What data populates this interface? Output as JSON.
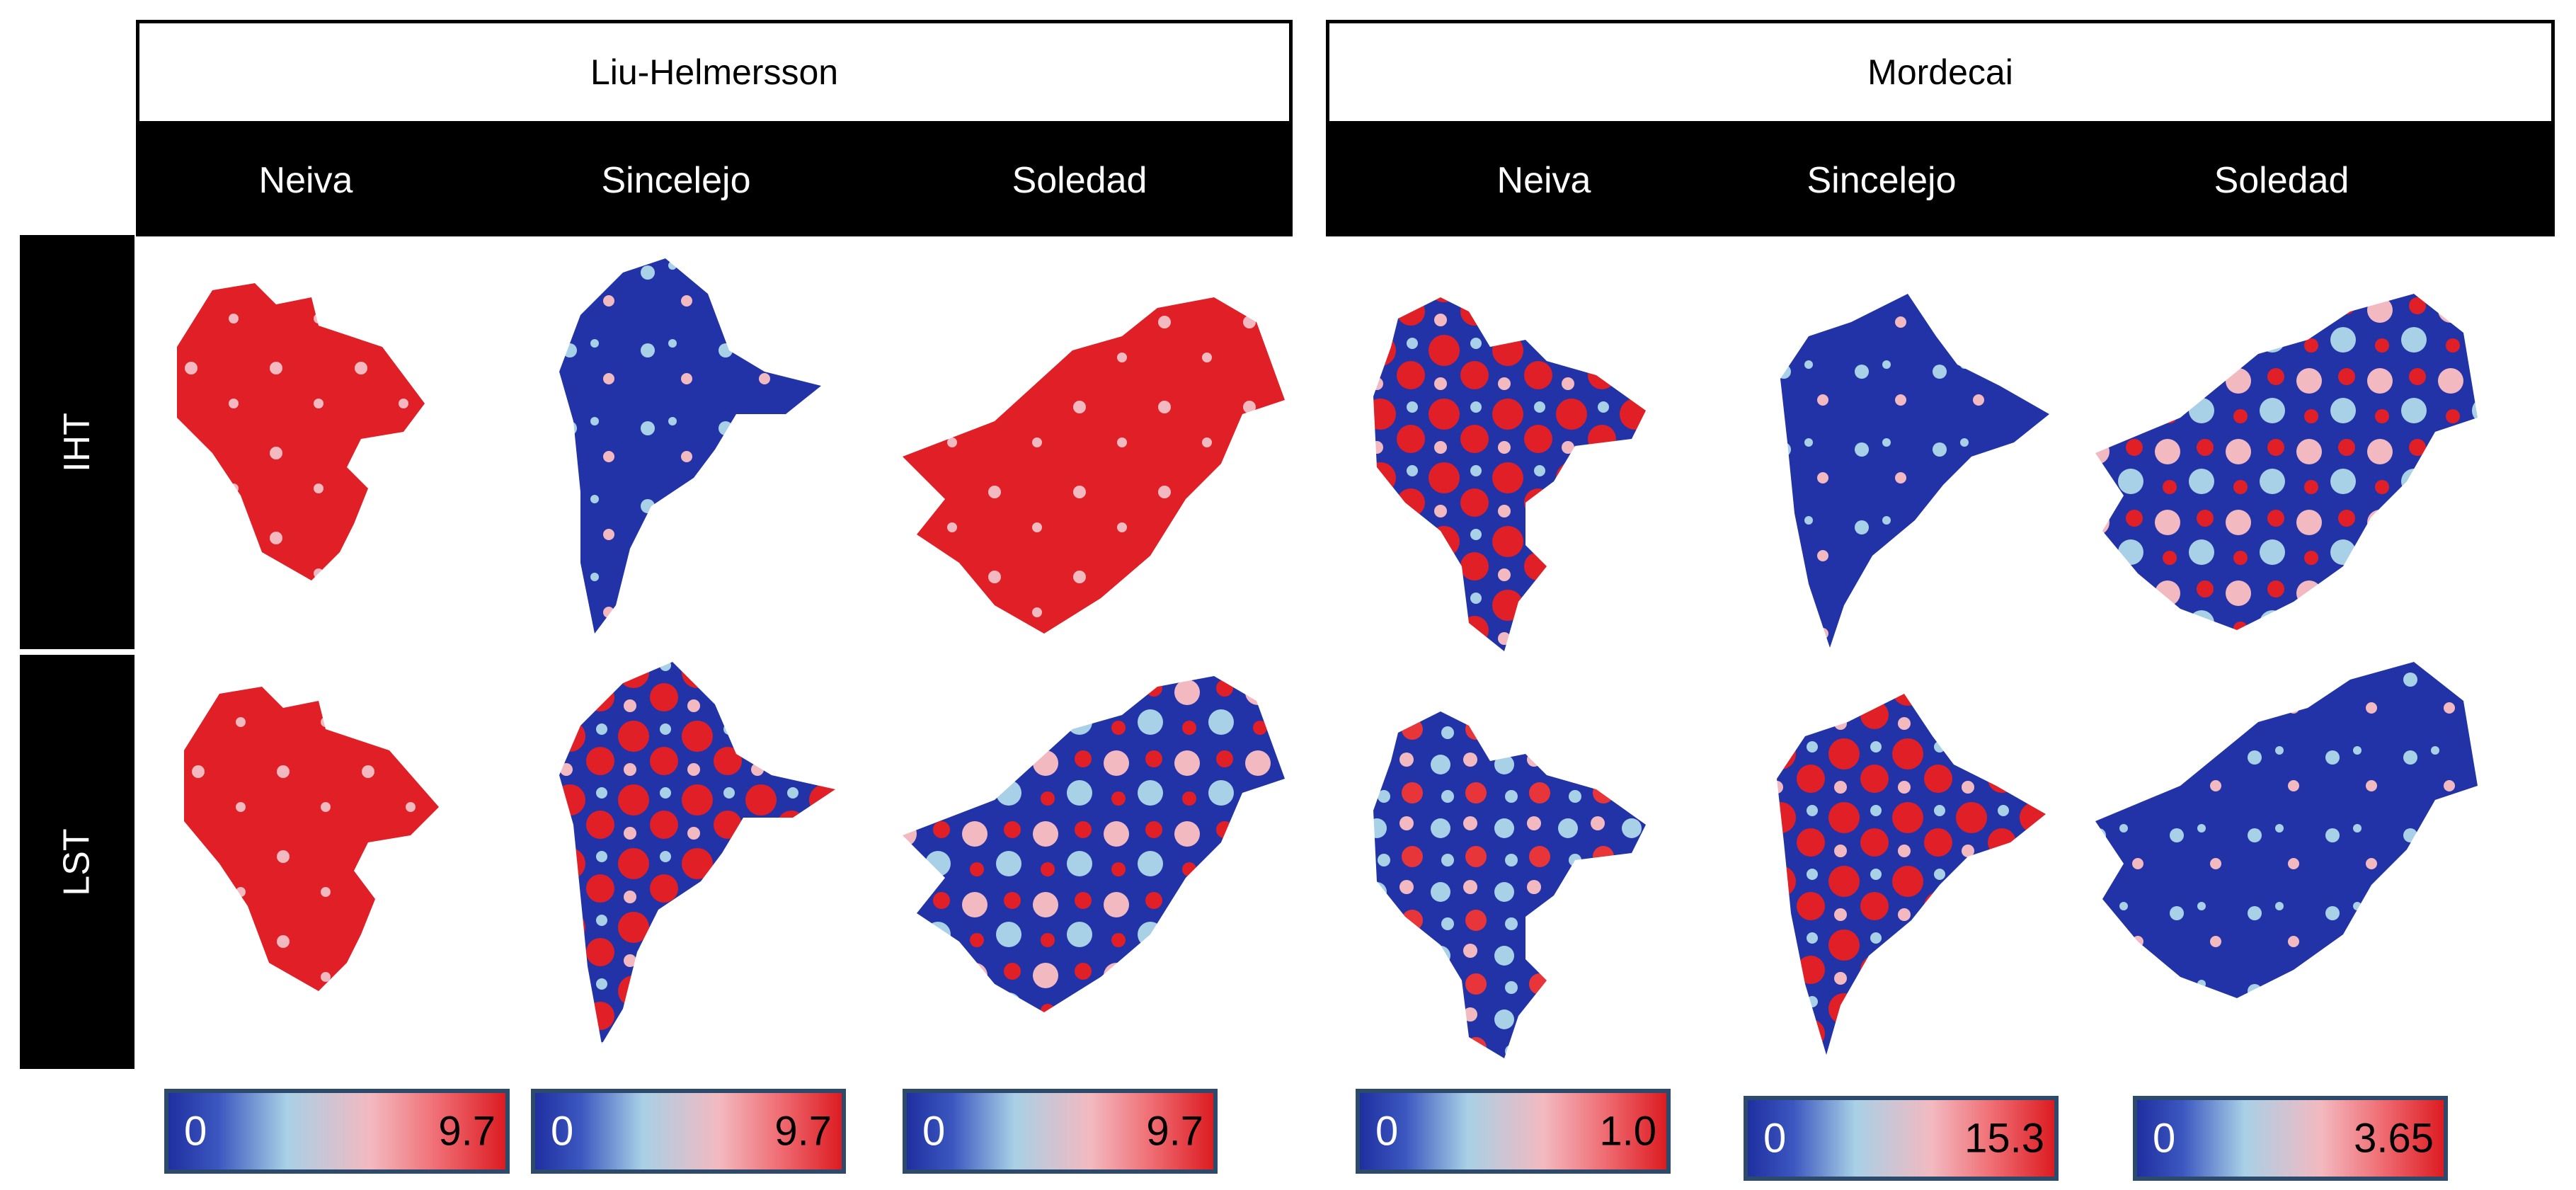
{
  "header": {
    "models": [
      "Liu-Helmersson",
      "Mordecai"
    ],
    "cities": [
      "Neiva",
      "Sincelejo",
      "Soledad",
      "Neiva",
      "Sincelejo",
      "Soledad"
    ]
  },
  "rows": [
    "IHT",
    "LST"
  ],
  "maps": [
    {
      "row": "IHT",
      "model": "Liu-Helmersson",
      "city": "Neiva"
    },
    {
      "row": "IHT",
      "model": "Liu-Helmersson",
      "city": "Sincelejo"
    },
    {
      "row": "IHT",
      "model": "Liu-Helmersson",
      "city": "Soledad"
    },
    {
      "row": "IHT",
      "model": "Mordecai",
      "city": "Neiva"
    },
    {
      "row": "IHT",
      "model": "Mordecai",
      "city": "Sincelejo"
    },
    {
      "row": "IHT",
      "model": "Mordecai",
      "city": "Soledad"
    },
    {
      "row": "LST",
      "model": "Liu-Helmersson",
      "city": "Neiva"
    },
    {
      "row": "LST",
      "model": "Liu-Helmersson",
      "city": "Sincelejo"
    },
    {
      "row": "LST",
      "model": "Liu-Helmersson",
      "city": "Soledad"
    },
    {
      "row": "LST",
      "model": "Mordecai",
      "city": "Neiva"
    },
    {
      "row": "LST",
      "model": "Mordecai",
      "city": "Sincelejo"
    },
    {
      "row": "LST",
      "model": "Mordecai",
      "city": "Soledad"
    }
  ],
  "color_scales": [
    {
      "min": "0",
      "max": "9.7"
    },
    {
      "min": "0",
      "max": "9.7"
    },
    {
      "min": "0",
      "max": "9.7"
    },
    {
      "min": "0",
      "max": "1.0"
    },
    {
      "min": "0",
      "max": "15.3"
    },
    {
      "min": "0",
      "max": "3.65"
    }
  ],
  "colors": {
    "low": "#1f2fa0",
    "mid": "#a8d0e6",
    "high": "#dc1c22",
    "header_bg": "#000000",
    "header_text": "#ffffff"
  }
}
